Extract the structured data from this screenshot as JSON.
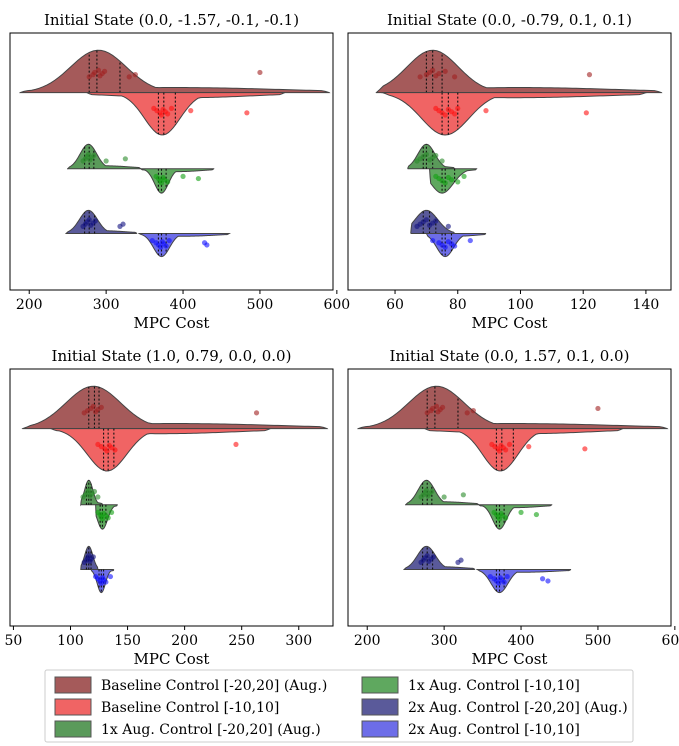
{
  "series_colors": {
    "Baseline Control [-20,20] (Aug.)": "#a55a5a",
    "Baseline Control [-10,10]": "#f06464",
    "1x Aug. Control [-20,20] (Aug.)": "#5a9a5a",
    "1x Aug. Control [-10,10]": "#5fa85f",
    "2x Aug. Control [-20,20] (Aug.)": "#5a5a9a",
    "2x Aug. Control [-10,10]": "#6d6de8"
  },
  "point_colors": [
    "#a02020",
    "#ff1010",
    "#2a8a2a",
    "#10a010",
    "#101080",
    "#1010ff"
  ],
  "legend": {
    "items": [
      "Baseline Control [-20,20] (Aug.)",
      "Baseline Control [-10,10]",
      "1x Aug. Control [-20,20] (Aug.)",
      "1x Aug. Control [-10,10]",
      "2x Aug. Control [-20,20] (Aug.)",
      "2x Aug. Control [-10,10]"
    ]
  },
  "chart_data": [
    {
      "type": "violin",
      "title": "Initial State (0.0, -1.57, -0.1, -0.1)",
      "xlabel": "MPC Cost",
      "xlim": [
        175,
        595
      ],
      "xticks": [
        "200",
        "300",
        "400",
        "500",
        "600"
      ],
      "xtick_values": [
        200,
        300,
        400,
        500,
        600
      ],
      "series": [
        {
          "name": "Baseline Control [-20,20] (Aug.)",
          "side": "upper",
          "extent": [
            188,
            590
          ],
          "median": 288,
          "quartiles": [
            278,
            318
          ],
          "peak": 290,
          "points": [
            278,
            283,
            285,
            290,
            292,
            295,
            298,
            330,
            338,
            500
          ]
        },
        {
          "name": "Baseline Control [-10,10]",
          "side": "lower",
          "extent": [
            275,
            532
          ],
          "median": 375,
          "quartiles": [
            368,
            390
          ],
          "peak": 373,
          "points": [
            362,
            366,
            370,
            372,
            374,
            377,
            380,
            385,
            410,
            483
          ]
        },
        {
          "name": "1x Aug. Control [-20,20] (Aug.)",
          "side": "upper",
          "extent": [
            250,
            345
          ],
          "median": 278,
          "quartiles": [
            272,
            284
          ],
          "peak": 277,
          "points": [
            270,
            273,
            275,
            277,
            279,
            281,
            284,
            300,
            325
          ]
        },
        {
          "name": "1x Aug. Control [-10,10]",
          "side": "lower",
          "extent": [
            345,
            440
          ],
          "median": 372,
          "quartiles": [
            368,
            378
          ],
          "peak": 372,
          "points": [
            365,
            368,
            370,
            372,
            374,
            376,
            380,
            400,
            420
          ]
        },
        {
          "name": "2x Aug. Control [-20,20] (Aug.)",
          "side": "upper",
          "extent": [
            248,
            340
          ],
          "median": 278,
          "quartiles": [
            272,
            285
          ],
          "peak": 277,
          "points": [
            270,
            273,
            275,
            278,
            280,
            283,
            286,
            318,
            322
          ]
        },
        {
          "name": "2x Aug. Control [-10,10]",
          "side": "lower",
          "extent": [
            343,
            460
          ],
          "median": 372,
          "quartiles": [
            368,
            378
          ],
          "peak": 372,
          "points": [
            360,
            365,
            368,
            371,
            373,
            375,
            378,
            382,
            428,
            431
          ]
        }
      ]
    },
    {
      "type": "violin",
      "title": "Initial State (0.0, -0.79, 0.1, 0.1)",
      "xlabel": "MPC Cost",
      "xlim": [
        45,
        148
      ],
      "xticks": [
        "60",
        "80",
        "100",
        "120",
        "140"
      ],
      "xtick_values": [
        60,
        80,
        100,
        120,
        140
      ],
      "series": [
        {
          "name": "Baseline Control [-20,20] (Aug.)",
          "side": "upper",
          "extent": [
            54,
            145
          ],
          "median": 72,
          "quartiles": [
            70,
            75
          ],
          "peak": 72,
          "points": [
            68,
            70,
            71,
            72,
            73,
            74,
            76,
            79,
            122
          ]
        },
        {
          "name": "Baseline Control [-10,10]",
          "side": "lower",
          "extent": [
            56,
            140
          ],
          "median": 77,
          "quartiles": [
            75,
            80
          ],
          "peak": 76,
          "points": [
            73,
            74,
            75,
            76,
            77,
            78,
            79,
            80,
            89,
            121
          ]
        },
        {
          "name": "1x Aug. Control [-20,20] (Aug.)",
          "side": "upper",
          "extent": [
            64,
            79
          ],
          "median": 70,
          "quartiles": [
            69,
            72
          ],
          "peak": 70,
          "points": [
            67,
            68,
            69,
            70,
            71,
            72,
            73,
            75
          ]
        },
        {
          "name": "1x Aug. Control [-10,10]",
          "side": "lower",
          "extent": [
            71,
            86
          ],
          "median": 76,
          "quartiles": [
            75,
            79
          ],
          "peak": 75,
          "points": [
            73,
            74,
            75,
            76,
            77,
            78,
            80,
            82
          ]
        },
        {
          "name": "2x Aug. Control [-20,20] (Aug.)",
          "side": "upper",
          "extent": [
            65,
            79
          ],
          "median": 71,
          "quartiles": [
            69,
            73
          ],
          "peak": 70,
          "points": [
            67,
            68,
            69,
            70,
            71,
            72,
            73,
            77
          ]
        },
        {
          "name": "2x Aug. Control [-10,10]",
          "side": "lower",
          "extent": [
            70,
            89
          ],
          "median": 76,
          "quartiles": [
            75,
            78
          ],
          "peak": 76,
          "points": [
            72,
            74,
            75,
            76,
            77,
            78,
            79,
            84
          ]
        }
      ]
    },
    {
      "type": "violin",
      "title": "Initial State (1.0, 0.79, 0.0, 0.0)",
      "xlabel": "MPC Cost",
      "xlim": [
        47,
        330
      ],
      "xticks": [
        "50",
        "100",
        "150",
        "200",
        "250",
        "300"
      ],
      "xtick_values": [
        50,
        100,
        150,
        200,
        250,
        300
      ],
      "series": [
        {
          "name": "Baseline Control [-20,20] (Aug.)",
          "side": "upper",
          "extent": [
            58,
            325
          ],
          "median": 121,
          "quartiles": [
            116,
            125
          ],
          "peak": 120,
          "points": [
            112,
            115,
            118,
            120,
            122,
            124,
            127,
            263
          ]
        },
        {
          "name": "Baseline Control [-10,10]",
          "side": "lower",
          "extent": [
            83,
            275
          ],
          "median": 133,
          "quartiles": [
            129,
            138
          ],
          "peak": 132,
          "points": [
            124,
            127,
            130,
            132,
            134,
            136,
            139,
            245
          ]
        },
        {
          "name": "1x Aug. Control [-20,20] (Aug.)",
          "side": "upper",
          "extent": [
            109,
            128
          ],
          "median": 116,
          "quartiles": [
            114,
            118
          ],
          "peak": 116,
          "points": [
            111,
            113,
            115,
            116,
            117,
            119,
            121,
            124
          ]
        },
        {
          "name": "1x Aug. Control [-10,10]",
          "side": "lower",
          "extent": [
            122,
            141
          ],
          "median": 128,
          "quartiles": [
            126,
            131
          ],
          "peak": 128,
          "points": [
            124,
            126,
            127,
            128,
            129,
            131,
            133,
            136
          ]
        },
        {
          "name": "2x Aug. Control [-20,20] (Aug.)",
          "side": "upper",
          "extent": [
            109,
            124
          ],
          "median": 116,
          "quartiles": [
            114,
            118
          ],
          "peak": 116,
          "points": [
            112,
            114,
            115,
            116,
            117,
            118,
            120
          ]
        },
        {
          "name": "2x Aug. Control [-10,10]",
          "side": "lower",
          "extent": [
            118,
            138
          ],
          "median": 127,
          "quartiles": [
            125,
            129
          ],
          "peak": 127,
          "points": [
            122,
            124,
            126,
            127,
            128,
            129,
            131,
            135
          ]
        }
      ]
    },
    {
      "type": "violin",
      "title": "Initial State (0.0, 1.57, 0.1, 0.0)",
      "xlabel": "MPC Cost",
      "xlim": [
        175,
        595
      ],
      "xticks": [
        "200",
        "300",
        "400",
        "500",
        "600"
      ],
      "xtick_values": [
        200,
        300,
        400,
        500,
        600
      ],
      "series": [
        {
          "name": "Baseline Control [-20,20] (Aug.)",
          "side": "upper",
          "extent": [
            188,
            590
          ],
          "median": 288,
          "quartiles": [
            278,
            318
          ],
          "peak": 290,
          "points": [
            278,
            283,
            285,
            290,
            292,
            295,
            298,
            330,
            338,
            500
          ]
        },
        {
          "name": "Baseline Control [-10,10]",
          "side": "lower",
          "extent": [
            275,
            532
          ],
          "median": 375,
          "quartiles": [
            368,
            390
          ],
          "peak": 373,
          "points": [
            362,
            366,
            370,
            372,
            374,
            377,
            380,
            385,
            410,
            483
          ]
        },
        {
          "name": "1x Aug. Control [-20,20] (Aug.)",
          "side": "upper",
          "extent": [
            250,
            345
          ],
          "median": 278,
          "quartiles": [
            272,
            284
          ],
          "peak": 277,
          "points": [
            270,
            273,
            275,
            277,
            279,
            281,
            284,
            300,
            325
          ]
        },
        {
          "name": "1x Aug. Control [-10,10]",
          "side": "lower",
          "extent": [
            345,
            440
          ],
          "median": 372,
          "quartiles": [
            368,
            378
          ],
          "peak": 372,
          "points": [
            365,
            368,
            370,
            372,
            374,
            376,
            380,
            400,
            420
          ]
        },
        {
          "name": "2x Aug. Control [-20,20] (Aug.)",
          "side": "upper",
          "extent": [
            248,
            340
          ],
          "median": 278,
          "quartiles": [
            272,
            285
          ],
          "peak": 277,
          "points": [
            270,
            273,
            275,
            278,
            280,
            283,
            286,
            318,
            322
          ]
        },
        {
          "name": "2x Aug. Control [-10,10]",
          "side": "lower",
          "extent": [
            343,
            465
          ],
          "median": 372,
          "quartiles": [
            368,
            378
          ],
          "peak": 372,
          "points": [
            360,
            365,
            368,
            371,
            373,
            375,
            378,
            382,
            428,
            435
          ]
        }
      ]
    }
  ]
}
